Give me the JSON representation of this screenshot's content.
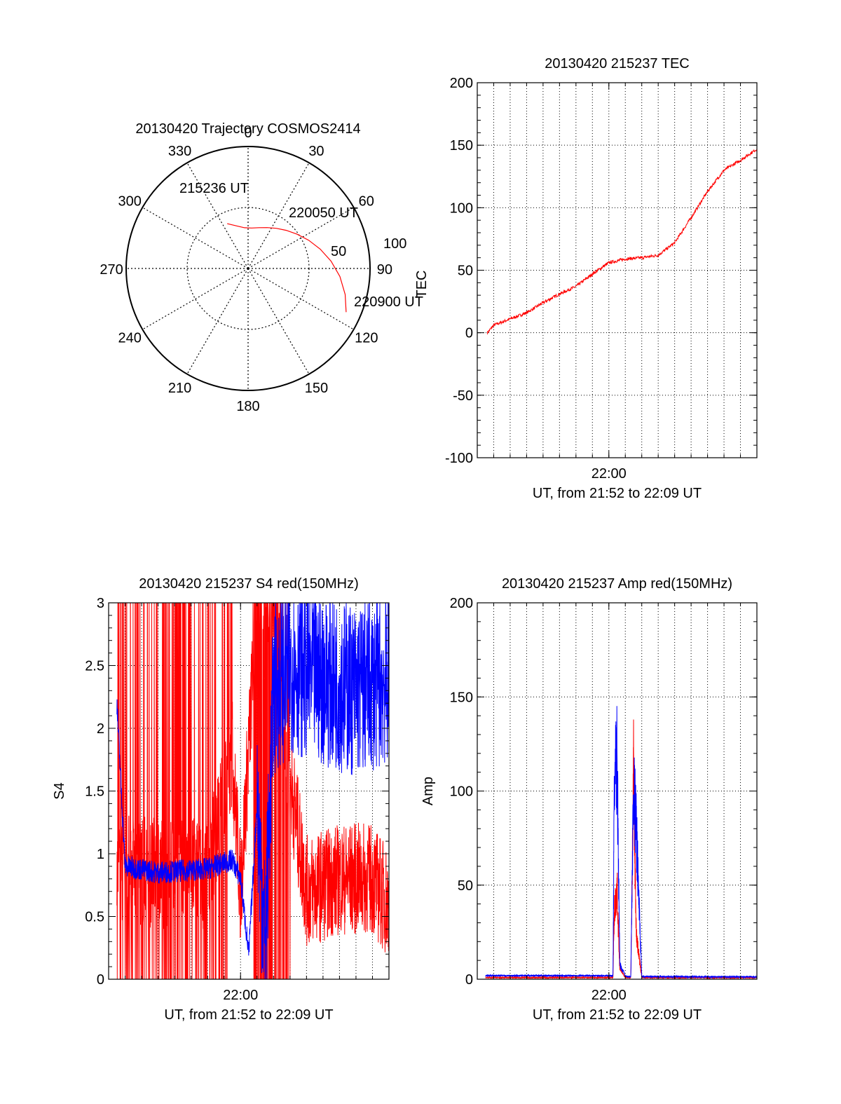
{
  "colors": {
    "red": "#ff0000",
    "blue": "#0000ff",
    "axis": "#000000",
    "grid": "#000000",
    "background": "#ffffff"
  },
  "chart_data": [
    {
      "id": "trajectory",
      "type": "polar",
      "title": "20130420 Trajectory COSMOS2414",
      "azimuth_ticks": [
        "0",
        "30",
        "60",
        "90",
        "120",
        "150",
        "180",
        "210",
        "240",
        "270",
        "300",
        "330"
      ],
      "radial_ticks": [
        "50",
        "100"
      ],
      "radial_max": 100,
      "start_label": "215236 UT",
      "mid_label": "220050 UT",
      "end_label": "220900 UT",
      "series": [
        {
          "color": "red",
          "azimuth": [
            335,
            345,
            355,
            5,
            15,
            25,
            35,
            45,
            55,
            65,
            75,
            85,
            95,
            105,
            114
          ],
          "radius": [
            40.5,
            36.1,
            33.5,
            33.3,
            34.6,
            37.0,
            40.2,
            44.2,
            49.0,
            54.8,
            61.2,
            68.3,
            75.6,
            82.4,
            88.0
          ]
        }
      ]
    },
    {
      "id": "tec",
      "type": "line",
      "title": "20130420 215237 TEC",
      "xlabel": "UT, from 21:52 to 22:09 UT",
      "ylabel": "TEC",
      "x_tick_label": "22:00",
      "xlim": [
        "21:52",
        "22:09"
      ],
      "ylim": [
        -100,
        200
      ],
      "y_ticks": [
        "-100",
        "-50",
        "0",
        "50",
        "100",
        "150",
        "200"
      ],
      "grid": true,
      "series": [
        {
          "color": "red",
          "x": [
            "21:52:37",
            "21:53:00",
            "21:54:00",
            "21:55:00",
            "21:56:00",
            "21:57:00",
            "21:58:00",
            "21:59:00",
            "22:00:00",
            "22:01:00",
            "22:02:00",
            "22:03:00",
            "22:04:00",
            "22:05:00",
            "22:06:00",
            "22:07:00",
            "22:08:00",
            "22:09:00"
          ],
          "y": [
            0,
            6,
            11,
            16,
            24,
            31,
            37,
            47,
            56,
            59,
            60,
            62,
            72,
            92,
            113,
            130,
            138,
            147
          ]
        }
      ]
    },
    {
      "id": "s4",
      "type": "line",
      "title": "20130420 215237 S4 red(150MHz)",
      "xlabel": "UT, from 21:52 to 22:09 UT",
      "ylabel": "S4",
      "x_tick_label": "22:00",
      "xlim": [
        "21:52",
        "22:09"
      ],
      "ylim": [
        0,
        3
      ],
      "y_ticks": [
        "0",
        "0.5",
        "1",
        "1.5",
        "2",
        "2.5",
        "3"
      ],
      "grid": true,
      "series": [
        {
          "color": "red",
          "x_min": [
            21.875,
            21.9,
            21.95,
            22.0,
            22.05,
            22.1,
            22.15
          ],
          "note_points_x": [
            21.88,
            21.95,
            22.0,
            22.02,
            22.06,
            22.08,
            22.1,
            22.12,
            22.14
          ],
          "x": [
            "21:52:30",
            "21:55:00",
            "21:58:00",
            "21:59:30",
            "22:00:00",
            "22:01:00",
            "22:02:00",
            "22:03:00",
            "22:04:00",
            "22:06:00",
            "22:08:00",
            "22:09:00"
          ],
          "y": [
            0.9,
            0.85,
            0.85,
            1.8,
            0.7,
            3.0,
            3.0,
            1.6,
            0.7,
            0.8,
            0.8,
            0.6
          ]
        },
        {
          "color": "blue",
          "x": [
            "21:52:30",
            "21:53:00",
            "21:55:00",
            "21:58:00",
            "21:59:30",
            "22:00:00",
            "22:00:30",
            "22:01:00",
            "22:01:30",
            "22:02:00",
            "22:03:00",
            "22:05:00",
            "22:07:00",
            "22:09:00"
          ],
          "y": [
            2.2,
            0.9,
            0.85,
            0.88,
            0.95,
            0.8,
            0.2,
            1.4,
            0.25,
            2.3,
            2.5,
            2.4,
            2.3,
            2.4
          ]
        }
      ]
    },
    {
      "id": "amp",
      "type": "line",
      "title": "20130420 215237 Amp red(150MHz)",
      "xlabel": "UT, from 21:52 to 22:09 UT",
      "ylabel": "Amp",
      "x_tick_label": "22:00",
      "xlim": [
        "21:52",
        "22:09"
      ],
      "ylim": [
        0,
        200
      ],
      "y_ticks": [
        "0",
        "50",
        "100",
        "150",
        "200"
      ],
      "grid": true,
      "series": [
        {
          "color": "red",
          "x": [
            "21:52:30",
            "22:00:15",
            "22:00:20",
            "22:00:30",
            "22:00:40",
            "22:01:00",
            "22:01:20",
            "22:01:30",
            "22:01:40",
            "22:02:00",
            "22:09:00"
          ],
          "y": [
            0.5,
            0.5,
            45,
            60,
            5,
            0.5,
            0.5,
            138,
            30,
            0.5,
            0.5
          ]
        },
        {
          "color": "blue",
          "x": [
            "21:52:30",
            "22:00:15",
            "22:00:20",
            "22:00:30",
            "22:00:40",
            "22:01:00",
            "22:01:20",
            "22:01:30",
            "22:01:40",
            "22:02:00",
            "22:09:00"
          ],
          "y": [
            1.5,
            1.5,
            130,
            147,
            10,
            1.0,
            1.0,
            130,
            100,
            1.0,
            0.8
          ]
        }
      ]
    }
  ]
}
